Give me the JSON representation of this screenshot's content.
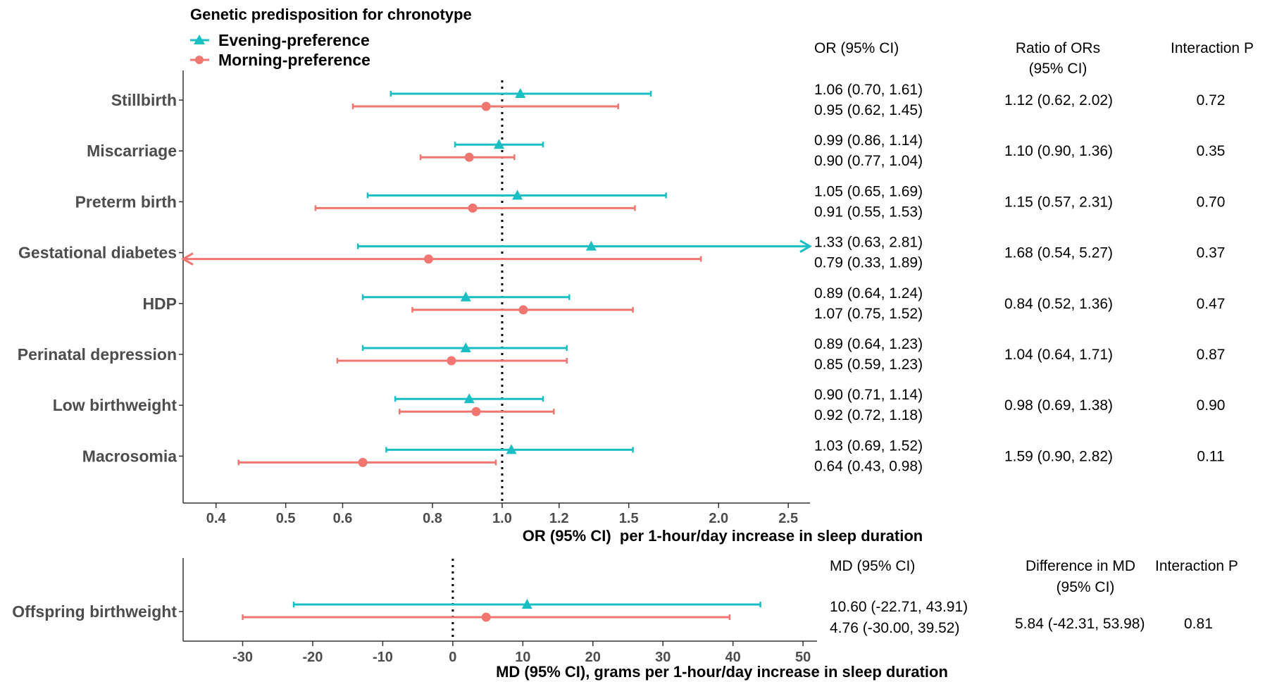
{
  "colors": {
    "evening": "#1ABFC4",
    "morning": "#F27670"
  },
  "legend": {
    "title": "Genetic predisposition for chronotype",
    "items": [
      {
        "label": "Evening-preference",
        "marker": "triangle",
        "color": "#1ABFC4"
      },
      {
        "label": "Morning-preference",
        "marker": "circle",
        "color": "#F27670"
      }
    ]
  },
  "chart_data": [
    {
      "type": "forest",
      "xlabel": "OR (95% CI)  per 1-hour/day increase in sleep duration",
      "x_scale": "log",
      "xlim": [
        0.36,
        2.68
      ],
      "reference_line": 1.0,
      "xticks": [
        0.4,
        0.5,
        0.6,
        0.8,
        1.0,
        1.2,
        1.5,
        2.0,
        2.5
      ],
      "xtick_labels": [
        "0.4",
        "0.5",
        "0.6",
        "0.8",
        "1.0",
        "1.2",
        "1.5",
        "2.0",
        "2.5"
      ],
      "columns": {
        "estimate": "OR (95% CI)",
        "ratio_line1": "Ratio of ORs",
        "ratio_line2": "(95% CI)",
        "p": "Interaction P"
      },
      "rows": [
        {
          "outcome": "Stillbirth",
          "evening": {
            "est": 1.06,
            "lo": 0.7,
            "hi": 1.61,
            "text": "1.06 (0.70, 1.61)"
          },
          "morning": {
            "est": 0.95,
            "lo": 0.62,
            "hi": 1.45,
            "text": "0.95 (0.62, 1.45)"
          },
          "ratio": "1.12 (0.62, 2.02)",
          "p": "0.72"
        },
        {
          "outcome": "Miscarriage",
          "evening": {
            "est": 0.99,
            "lo": 0.86,
            "hi": 1.14,
            "text": "0.99 (0.86, 1.14)"
          },
          "morning": {
            "est": 0.9,
            "lo": 0.77,
            "hi": 1.04,
            "text": "0.90 (0.77, 1.04)"
          },
          "ratio": "1.10 (0.90, 1.36)",
          "p": "0.35"
        },
        {
          "outcome": "Preterm birth",
          "evening": {
            "est": 1.05,
            "lo": 0.65,
            "hi": 1.69,
            "text": "1.05 (0.65, 1.69)"
          },
          "morning": {
            "est": 0.91,
            "lo": 0.55,
            "hi": 1.53,
            "text": "0.91 (0.55, 1.53)"
          },
          "ratio": "1.15 (0.57, 2.31)",
          "p": "0.70"
        },
        {
          "outcome": "Gestational diabetes",
          "evening": {
            "est": 1.33,
            "lo": 0.63,
            "hi": 2.81,
            "text": "1.33 (0.63, 2.81)"
          },
          "morning": {
            "est": 0.79,
            "lo": 0.33,
            "hi": 1.89,
            "text": "0.79 (0.33, 1.89)"
          },
          "ratio": "1.68 (0.54, 5.27)",
          "p": "0.37"
        },
        {
          "outcome": "HDP",
          "evening": {
            "est": 0.89,
            "lo": 0.64,
            "hi": 1.24,
            "text": "0.89 (0.64, 1.24)"
          },
          "morning": {
            "est": 1.07,
            "lo": 0.75,
            "hi": 1.52,
            "text": "1.07 (0.75, 1.52)"
          },
          "ratio": "0.84 (0.52, 1.36)",
          "p": "0.47"
        },
        {
          "outcome": "Perinatal depression",
          "evening": {
            "est": 0.89,
            "lo": 0.64,
            "hi": 1.23,
            "text": "0.89 (0.64, 1.23)"
          },
          "morning": {
            "est": 0.85,
            "lo": 0.59,
            "hi": 1.23,
            "text": "0.85 (0.59, 1.23)"
          },
          "ratio": "1.04 (0.64, 1.71)",
          "p": "0.87"
        },
        {
          "outcome": "Low birthweight",
          "evening": {
            "est": 0.9,
            "lo": 0.71,
            "hi": 1.14,
            "text": "0.90 (0.71, 1.14)"
          },
          "morning": {
            "est": 0.92,
            "lo": 0.72,
            "hi": 1.18,
            "text": "0.92 (0.72, 1.18)"
          },
          "ratio": "0.98 (0.69, 1.38)",
          "p": "0.90"
        },
        {
          "outcome": "Macrosomia",
          "evening": {
            "est": 1.03,
            "lo": 0.69,
            "hi": 1.52,
            "text": "1.03 (0.69, 1.52)"
          },
          "morning": {
            "est": 0.64,
            "lo": 0.43,
            "hi": 0.98,
            "text": "0.64 (0.43, 0.98)"
          },
          "ratio": "1.59 (0.90, 2.82)",
          "p": "0.11"
        }
      ]
    },
    {
      "type": "forest",
      "xlabel": "MD (95% CI), grams per 1-hour/day increase in sleep duration",
      "x_scale": "linear",
      "xlim": [
        -38.5,
        52
      ],
      "reference_line": 0,
      "xticks": [
        -30,
        -20,
        -10,
        0,
        10,
        20,
        30,
        40,
        50
      ],
      "xtick_labels": [
        "-30",
        "-20",
        "-10",
        "0",
        "10",
        "20",
        "30",
        "40",
        "50"
      ],
      "columns": {
        "estimate": "MD (95% CI)",
        "diff_line1": "Difference in MD",
        "diff_line2": "(95% CI)",
        "p": "Interaction P"
      },
      "rows": [
        {
          "outcome": "Offspring birthweight",
          "evening": {
            "est": 10.6,
            "lo": -22.71,
            "hi": 43.91,
            "text": "10.60 (-22.71, 43.91)"
          },
          "morning": {
            "est": 4.76,
            "lo": -30.0,
            "hi": 39.52,
            "text": "4.76 (-30.00, 39.52)"
          },
          "diff": "5.84 (-42.31, 53.98)",
          "p": "0.81"
        }
      ]
    }
  ]
}
